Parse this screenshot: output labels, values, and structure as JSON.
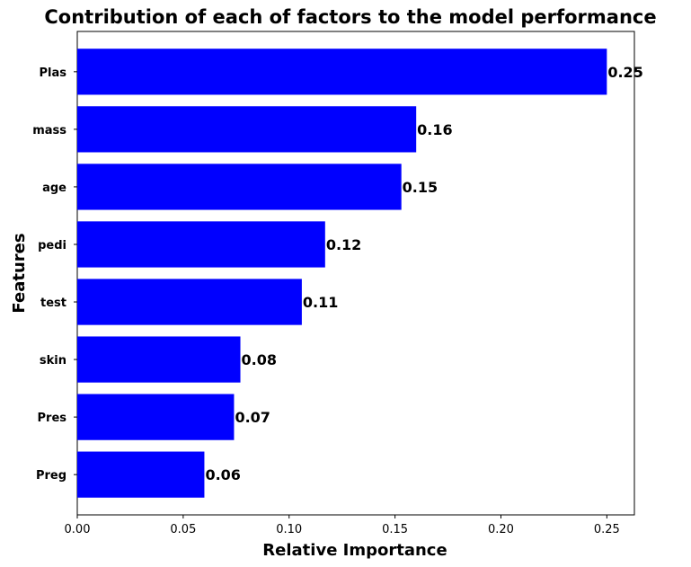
{
  "chart_data": {
    "type": "bar",
    "orientation": "horizontal",
    "title": "Contribution of each of factors to the model performance",
    "xlabel": "Relative Importance",
    "ylabel": "Features",
    "categories": [
      "Plas",
      "mass",
      "age",
      "pedi",
      "test",
      "skin",
      "Pres",
      "Preg"
    ],
    "values": [
      0.25,
      0.16,
      0.153,
      0.117,
      0.106,
      0.077,
      0.074,
      0.06
    ],
    "data_labels": [
      "0.25",
      "0.16",
      "0.15",
      "0.12",
      "0.11",
      "0.08",
      "0.07",
      "0.06"
    ],
    "xticks": [
      "0.00",
      "0.05",
      "0.10",
      "0.15",
      "0.20",
      "0.25"
    ],
    "xtick_values": [
      0,
      0.05,
      0.1,
      0.15,
      0.2,
      0.25
    ],
    "xlim": [
      0,
      0.263
    ],
    "bar_color": "#0000ff",
    "grid": false,
    "legend": "none"
  }
}
